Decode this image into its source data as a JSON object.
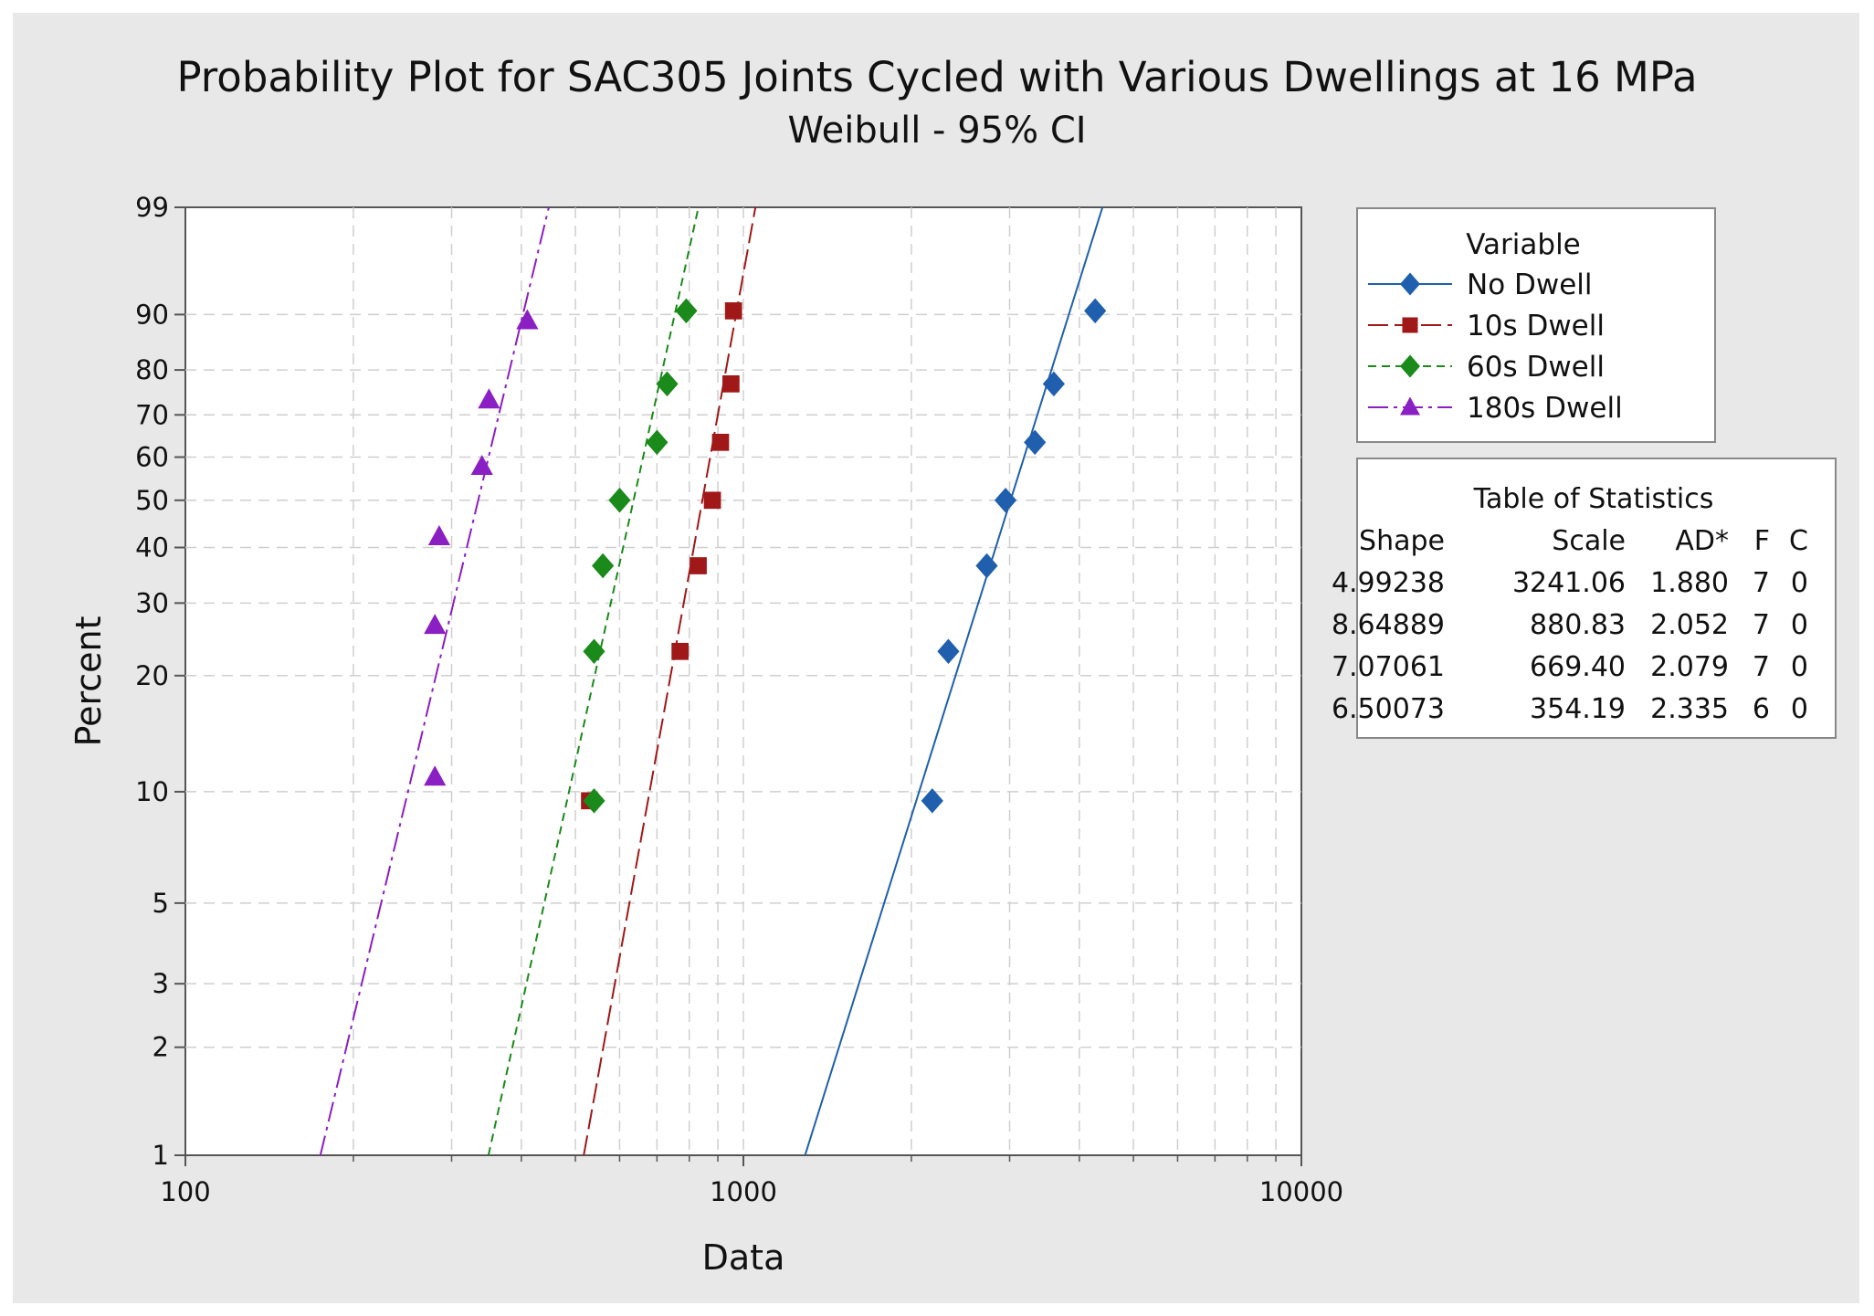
{
  "chart_data": {
    "type": "scatter",
    "title": "Probability Plot for SAC305 Joints Cycled with Various Dwellings at 16 MPa",
    "subtitle": "Weibull - 95% CI",
    "xlabel": "Data",
    "ylabel": "Percent",
    "x_scale": "log",
    "y_scale": "weibull",
    "xlim": [
      100,
      10000
    ],
    "ylim": [
      1,
      99
    ],
    "x_ticks": [
      "100",
      "1000",
      "10000"
    ],
    "y_ticks": [
      "1",
      "2",
      "3",
      "5",
      "10",
      "20",
      "30",
      "40",
      "50",
      "60",
      "70",
      "80",
      "90",
      "99"
    ],
    "grid": true,
    "legend": {
      "title": "Variable",
      "position": "right",
      "entries": [
        "No Dwell",
        "10s Dwell",
        "60s Dwell",
        "180s Dwell"
      ]
    },
    "series": [
      {
        "name": "No Dwell",
        "color": "#1f5fae",
        "marker": "diamond",
        "line": "solid",
        "shape": 4.99238,
        "scale": 3241.06,
        "points": [
          [
            2180,
            9.46
          ],
          [
            2330,
            22.97
          ],
          [
            2730,
            36.49
          ],
          [
            2950,
            50.0
          ],
          [
            3330,
            63.51
          ],
          [
            3600,
            77.03
          ],
          [
            4270,
            90.54
          ]
        ]
      },
      {
        "name": "10s Dwell",
        "color": "#a01818",
        "marker": "square",
        "line": "longdash",
        "shape": 8.64889,
        "scale": 880.83,
        "points": [
          [
            530,
            9.46
          ],
          [
            770,
            22.97
          ],
          [
            830,
            36.49
          ],
          [
            880,
            50.0
          ],
          [
            910,
            63.51
          ],
          [
            950,
            77.03
          ],
          [
            960,
            90.54
          ]
        ]
      },
      {
        "name": "60s Dwell",
        "color": "#1a8a1a",
        "marker": "diamond",
        "line": "dash",
        "shape": 7.07061,
        "scale": 669.4,
        "points": [
          [
            540,
            9.46
          ],
          [
            540,
            22.97
          ],
          [
            560,
            36.49
          ],
          [
            600,
            50.0
          ],
          [
            700,
            63.51
          ],
          [
            730,
            77.03
          ],
          [
            790,
            90.54
          ]
        ]
      },
      {
        "name": "180s Dwell",
        "color": "#8a1fc4",
        "marker": "triangle",
        "line": "dashdot",
        "shape": 6.50073,
        "scale": 354.19,
        "points": [
          [
            280,
            10.94
          ],
          [
            280,
            26.56
          ],
          [
            285,
            42.19
          ],
          [
            340,
            57.81
          ],
          [
            350,
            73.44
          ],
          [
            410,
            89.06
          ]
        ]
      }
    ],
    "statistics_table": {
      "title": "Table of Statistics",
      "headers": [
        "Shape",
        "Scale",
        "AD*",
        "F",
        "C"
      ],
      "rows": [
        [
          "4.99238",
          "3241.06",
          "1.880",
          "7",
          "0"
        ],
        [
          "8.64889",
          "880.83",
          "2.052",
          "7",
          "0"
        ],
        [
          "7.07061",
          "669.40",
          "2.079",
          "7",
          "0"
        ],
        [
          "6.50073",
          "354.19",
          "2.335",
          "6",
          "0"
        ]
      ]
    }
  }
}
